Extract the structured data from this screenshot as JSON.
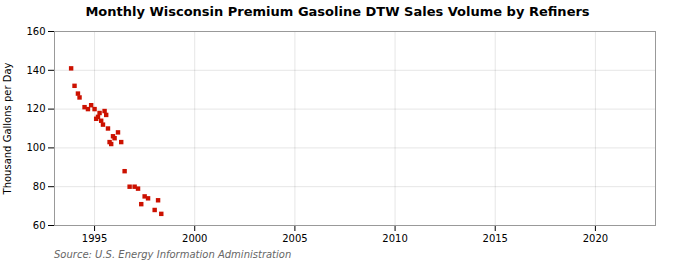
{
  "chart_data": {
    "type": "scatter",
    "title": "Monthly Wisconsin Premium Gasoline DTW Sales Volume by Refiners",
    "ylabel": "Thousand Gallons per Day",
    "source": "Source: U.S. Energy Information Administration",
    "color": "#cc1100",
    "marker": "square",
    "grid": true,
    "xlim": [
      1993.0,
      2023.0
    ],
    "ylim": [
      60,
      160
    ],
    "xticks": [
      1995,
      2000,
      2005,
      2010,
      2015,
      2020
    ],
    "yticks": [
      60,
      80,
      100,
      120,
      140,
      160
    ],
    "x": [
      1993.83,
      1994.0,
      1994.17,
      1994.25,
      1994.5,
      1994.67,
      1994.83,
      1995.0,
      1995.08,
      1995.17,
      1995.25,
      1995.33,
      1995.42,
      1995.5,
      1995.58,
      1995.67,
      1995.75,
      1995.83,
      1995.92,
      1996.0,
      1996.17,
      1996.33,
      1996.5,
      1996.75,
      1997.0,
      1997.17,
      1997.33,
      1997.5,
      1997.67,
      1998.0,
      1998.17,
      1998.33
    ],
    "values": [
      141,
      132,
      128,
      126,
      121,
      120,
      122,
      120,
      115,
      116,
      118,
      114,
      112,
      119,
      117,
      110,
      103,
      102,
      106,
      105,
      108,
      103,
      88,
      80,
      80,
      79,
      71,
      75,
      74,
      68,
      73,
      66
    ]
  }
}
